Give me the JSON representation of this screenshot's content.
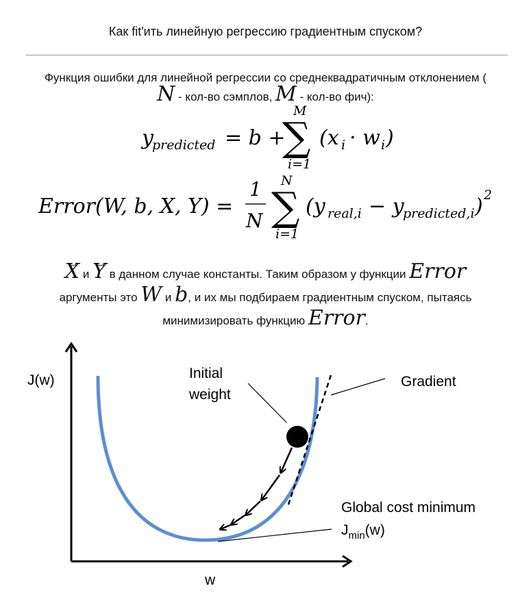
{
  "page": {
    "title": "Как fit'ить линейную регрессию градиентным спуском?",
    "intro": {
      "t1": "Функция ошибки для линейной регрессии со среднеквадратичным отклонением (",
      "n": "N",
      "t2": " - кол-во сэмплов, ",
      "m": "M",
      "t3": " - кол-во фич):"
    },
    "formula1": {
      "lhs": "y",
      "lhs_sub": "predicted",
      "eq": "= b +",
      "sum_top": "M",
      "sum_bottom": "i=1",
      "body": "(x",
      "x_sub": "i",
      "dot": "· w",
      "w_sub": "i",
      "close": ")"
    },
    "formula2": {
      "lhs": "Error(W, b, X, Y) =",
      "num": "1",
      "den": "N",
      "sum_top": "N",
      "sum_bottom": "i=1",
      "open": "(y",
      "sub1": "real,i",
      "minus": "− y",
      "sub2": "predicted,i",
      "close": ")",
      "sup": "2"
    },
    "paragraph": {
      "x": "X",
      "and1": " и ",
      "y": "Y",
      "t1": " в данном случае константы. Таким образом у функции ",
      "err1": "Error",
      "t2": "аргументы это ",
      "w": "W",
      "and2": " и ",
      "b": "b",
      "t3": ", и их мы подбираем градиентным спуском, пытаясь",
      "t4": "минимизировать функцию ",
      "err2": "Error",
      "end": "."
    },
    "figure": {
      "ylabel": "J(w)",
      "xlabel": "w",
      "initial_weight_line1": "Initial",
      "initial_weight_line2": "weight",
      "gradient": "Gradient",
      "global_min": "Global cost minimum",
      "jmin": "J",
      "jmin_sub": "min",
      "jmin_arg": "(w)",
      "curve_color": "#5b8fd4"
    }
  }
}
